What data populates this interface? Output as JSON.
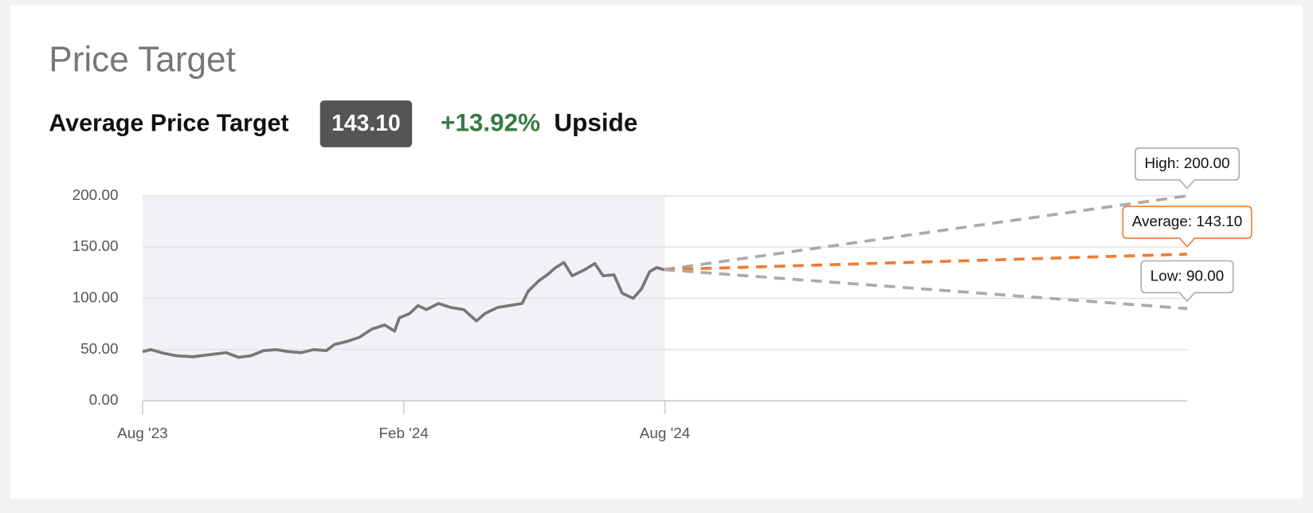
{
  "header": {
    "title": "Price Target",
    "average_label": "Average Price Target",
    "average_value": "143.10",
    "upside_value": "+13.92%",
    "upside_label": "Upside"
  },
  "chart_data": {
    "type": "line",
    "xlim": [
      0,
      24
    ],
    "xticks": [
      {
        "value": 0,
        "label": "Aug '23"
      },
      {
        "value": 6,
        "label": "Feb '24"
      },
      {
        "value": 12,
        "label": "Aug '24"
      }
    ],
    "ylim": [
      0,
      200
    ],
    "yticks": [
      {
        "value": 0,
        "label": "0.00"
      },
      {
        "value": 50,
        "label": "50.00"
      },
      {
        "value": 100,
        "label": "100.00"
      },
      {
        "value": 150,
        "label": "150.00"
      },
      {
        "value": 200,
        "label": "200.00"
      }
    ],
    "grid": true,
    "history_shade": [
      0,
      12
    ],
    "series": [
      {
        "color": "#777777",
        "x": [
          0,
          0.19,
          0.48,
          0.77,
          1.15,
          1.53,
          1.92,
          2.2,
          2.49,
          2.78,
          3.07,
          3.35,
          3.64,
          3.93,
          4.22,
          4.41,
          4.7,
          4.98,
          5.27,
          5.56,
          5.79,
          5.9,
          6.13,
          6.33,
          6.52,
          6.8,
          7.09,
          7.38,
          7.67,
          7.86,
          8.15,
          8.43,
          8.72,
          8.86,
          9.1,
          9.3,
          9.49,
          9.68,
          9.87,
          10.16,
          10.39,
          10.58,
          10.83,
          11.02,
          11.27,
          11.46,
          11.65,
          11.81,
          11.98
        ],
        "values": [
          48,
          50,
          46.5,
          44,
          43,
          45,
          47,
          42.5,
          44,
          49,
          50,
          48,
          47,
          50,
          49,
          55,
          58,
          62,
          70,
          74,
          68,
          81,
          85,
          93,
          89,
          95,
          91,
          89,
          78,
          85,
          91,
          93,
          95,
          107,
          117,
          123,
          130,
          135,
          122,
          128,
          134,
          122,
          123,
          105,
          100,
          109,
          126,
          130,
          128
        ]
      }
    ],
    "targets": [
      {
        "label": "High: 200.00",
        "value": 200,
        "color": "#aaaaaa"
      },
      {
        "label": "Average: 143.10",
        "value": 143.1,
        "color": "#ee7d31"
      },
      {
        "label": "Low: 90.00",
        "value": 90,
        "color": "#aaaaaa"
      }
    ]
  }
}
